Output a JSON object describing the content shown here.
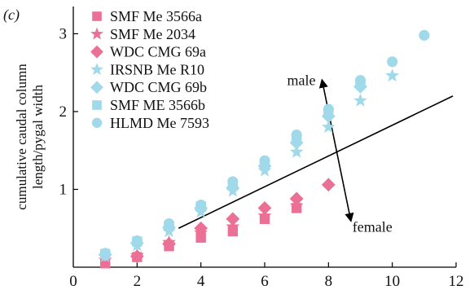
{
  "chart_data": {
    "type": "scatter",
    "panel_label": "(c)",
    "title": "",
    "xlabel": "",
    "ylabel": "cumulative caudal column length/pygal width",
    "ylabel_lines": [
      "cumulative caudal column",
      "length/pygal width"
    ],
    "xlim": [
      0,
      12
    ],
    "ylim": [
      0,
      3.35
    ],
    "x_ticks": [
      0,
      2,
      4,
      6,
      8,
      10,
      12
    ],
    "y_ticks": [
      1,
      2,
      3
    ],
    "grid": false,
    "legend_position": "top-left",
    "colors": {
      "pink": "#ec6f95",
      "blue": "#9fd9ea",
      "line": "#000000"
    },
    "series": [
      {
        "name": "SMF Me 3566a",
        "marker": "square",
        "color": "#ec6f95",
        "x": [
          1,
          2,
          3,
          4,
          5,
          6,
          7
        ],
        "y": [
          0.05,
          0.13,
          0.27,
          0.38,
          0.46,
          0.62,
          0.76
        ]
      },
      {
        "name": "SMF Me 2034",
        "marker": "star",
        "color": "#ec6f95",
        "x": [
          1,
          2,
          3,
          4,
          5,
          6,
          7
        ],
        "y": [
          0.09,
          0.15,
          0.32,
          0.44,
          0.52,
          0.66,
          0.79
        ]
      },
      {
        "name": "WDC CMG 69a",
        "marker": "diamond",
        "color": "#ec6f95",
        "x": [
          2,
          3,
          4,
          5,
          6,
          7,
          8
        ],
        "y": [
          0.14,
          0.3,
          0.5,
          0.62,
          0.76,
          0.88,
          1.06
        ]
      },
      {
        "name": "IRSNB Me R10",
        "marker": "star",
        "color": "#9fd9ea",
        "x": [
          1,
          2,
          3,
          4,
          5,
          6,
          7,
          8,
          9,
          10
        ],
        "y": [
          0.14,
          0.28,
          0.46,
          0.71,
          0.98,
          1.24,
          1.48,
          1.8,
          2.14,
          2.46
        ]
      },
      {
        "name": "WDC CMG 69b",
        "marker": "diamond",
        "color": "#9fd9ea",
        "x": [
          1,
          2,
          3,
          4,
          5,
          6,
          7,
          8,
          9
        ],
        "y": [
          0.16,
          0.31,
          0.51,
          0.76,
          1.02,
          1.3,
          1.6,
          1.94,
          2.32
        ]
      },
      {
        "name": "SMF ME 3566b",
        "marker": "square",
        "color": "#9fd9ea",
        "x": [
          1,
          2,
          3,
          4,
          5,
          6,
          7,
          8,
          9
        ],
        "y": [
          0.17,
          0.33,
          0.53,
          0.78,
          1.05,
          1.33,
          1.64,
          1.98,
          2.36
        ]
      },
      {
        "name": "HLMD Me 7593",
        "marker": "circle",
        "color": "#9fd9ea",
        "x": [
          1,
          2,
          3,
          4,
          5,
          6,
          7,
          8,
          9,
          10,
          11
        ],
        "y": [
          0.18,
          0.34,
          0.56,
          0.8,
          1.1,
          1.37,
          1.7,
          2.03,
          2.4,
          2.64,
          2.98
        ]
      }
    ],
    "annotations": {
      "separator_line": {
        "x": [
          3.3,
          11.9
        ],
        "y": [
          0.5,
          2.2
        ]
      },
      "arrow": {
        "x": [
          7.8,
          8.7
        ],
        "y": [
          0.6,
          2.4
        ]
      },
      "male_label": "male",
      "female_label": "female"
    }
  }
}
